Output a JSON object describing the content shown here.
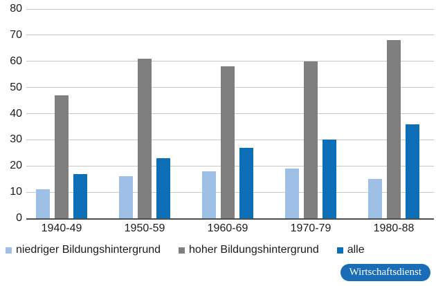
{
  "chart_data": {
    "type": "bar",
    "categories": [
      "1940-49",
      "1950-59",
      "1960-69",
      "1970-79",
      "1980-88"
    ],
    "series": [
      {
        "name": "niedriger Bildungshintergrund",
        "color": "#9fc0e6",
        "values": [
          11,
          16,
          18,
          19,
          15
        ]
      },
      {
        "name": "hoher Bildungshintergrund",
        "color": "#7f7f7f",
        "values": [
          47,
          61,
          58,
          60,
          68
        ]
      },
      {
        "name": "alle",
        "color": "#0d6fb8",
        "values": [
          17,
          23,
          27,
          30,
          36
        ]
      }
    ],
    "ylim": [
      0,
      80
    ],
    "yticks": [
      0,
      10,
      20,
      30,
      40,
      50,
      60,
      70,
      80
    ],
    "grid": true,
    "legend_position": "bottom"
  },
  "badge": {
    "label": "Wirtschaftsdienst",
    "color": "#1b6cb7"
  },
  "colors": {
    "gridline": "#c7c7c7",
    "axis": "#4d4d4d",
    "text": "#1a1a1a"
  }
}
